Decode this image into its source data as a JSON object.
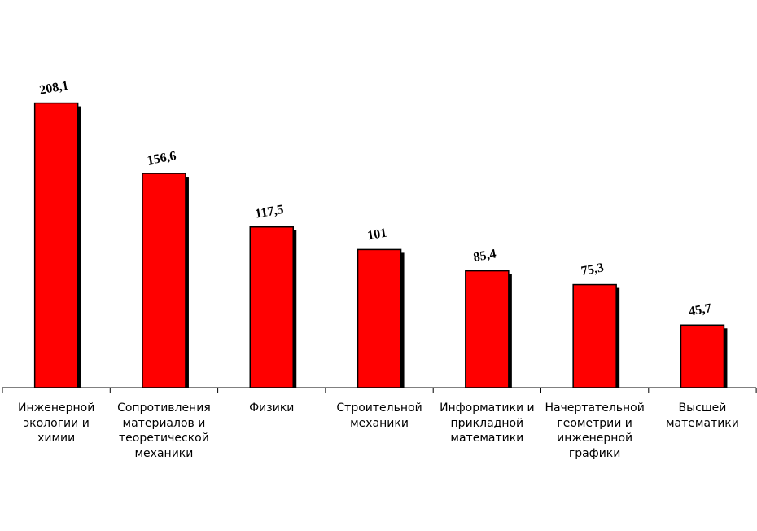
{
  "chart_data": {
    "type": "bar",
    "title": "",
    "xlabel": "",
    "ylabel": "",
    "categories": [
      "Инженерной\nэкологии и\nхимии",
      "Сопротивления\nматериалов и\nтеоретической\nмеханики",
      "Физики",
      "Строительной\nмеханики",
      "Информатики и\nприкладной\nматематики",
      "Начертательной\nгеометрии и\nинженерной\nграфики",
      "Высшей\nматематики"
    ],
    "values": [
      208.1,
      156.6,
      117.5,
      101,
      85.4,
      75.3,
      45.7
    ],
    "value_labels": [
      "208,1",
      "156,6",
      "117,5",
      "101",
      "85,4",
      "75,3",
      "45,7"
    ],
    "ylim": [
      0,
      240
    ],
    "grid": false,
    "legend": "none",
    "bar_color": "#FF0000",
    "bar_outline": "#000000",
    "shadow_color": "#000000"
  }
}
